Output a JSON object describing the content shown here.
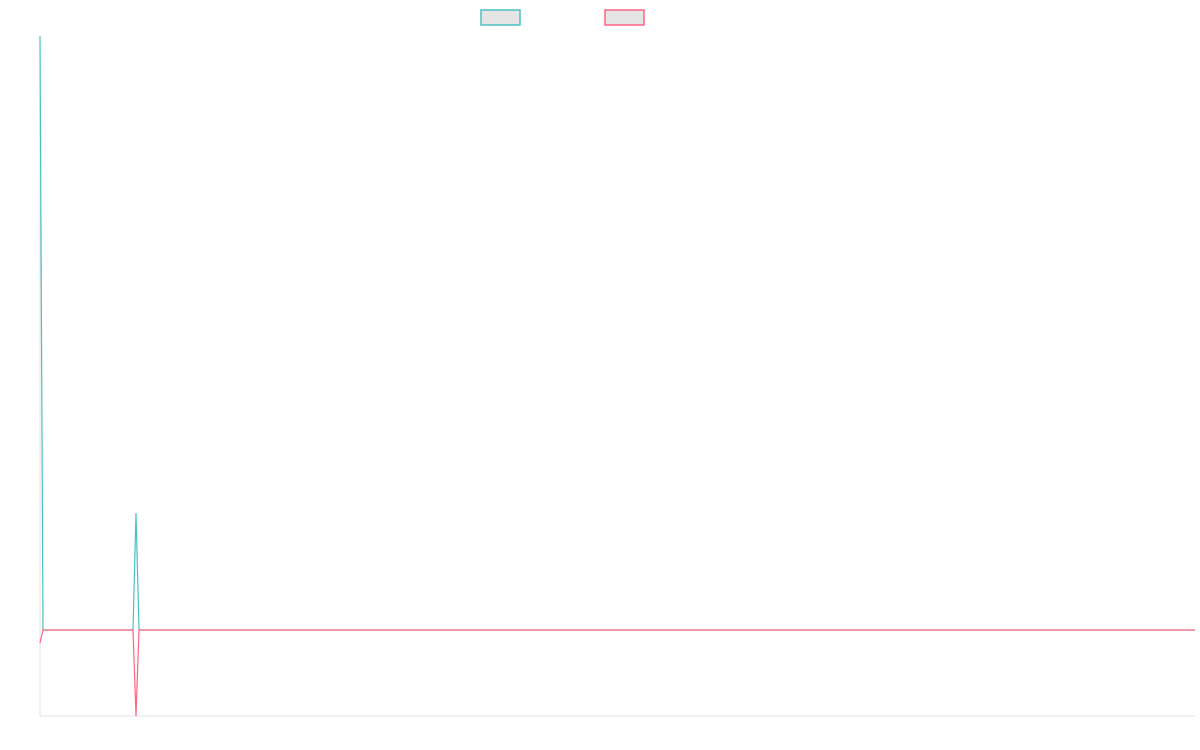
{
  "chart_data": {
    "type": "line",
    "title": "",
    "xlabel": "",
    "ylabel": "",
    "xlim": [
      0,
      385
    ],
    "ylim": [
      -14.5,
      100
    ],
    "grid": false,
    "legend_position": "top",
    "series": [
      {
        "color": "#4bc0c0",
        "points": [
          [
            0,
            100
          ],
          [
            1,
            0
          ],
          [
            31,
            0
          ],
          [
            32,
            19.7
          ],
          [
            33,
            0
          ],
          [
            385,
            0
          ]
        ]
      },
      {
        "color": "#ff6384",
        "points": [
          [
            0,
            -2.2
          ],
          [
            1,
            0
          ],
          [
            31,
            0
          ],
          [
            32,
            -14.5
          ],
          [
            33,
            0
          ],
          [
            385,
            0
          ]
        ]
      }
    ],
    "legend_fill": "#e5e5e5",
    "axis_color": "#e0e0e0"
  }
}
